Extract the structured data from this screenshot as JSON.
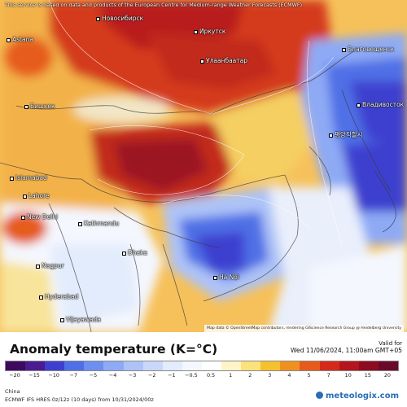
{
  "banner": "This service is based on data and products of the European Centre for Medium-range Weather Forecasts (ECMWF)",
  "attribution": "Map data © OpenStreetMap contributors, rendering GIScience Research Group @ Heidelberg University",
  "valid": {
    "label": "Valid for",
    "time": "Wed 11/06/2024, 11:00am GMT+05"
  },
  "legend": {
    "title": "Anomaly temperature (K=°C)",
    "ticks": [
      "−20",
      "−15",
      "−10",
      "−7",
      "−5",
      "−4",
      "−3",
      "−2",
      "−1",
      "−0.5",
      "0.5",
      "1",
      "2",
      "3",
      "4",
      "5",
      "7",
      "10",
      "15",
      "20"
    ],
    "colors": [
      "#3d0a5e",
      "#4b1b8f",
      "#3d3fcf",
      "#4f6fe6",
      "#6e8ff0",
      "#8eaaf5",
      "#adc3f7",
      "#c8d8fa",
      "#e3ecfc",
      "#f4f7fe",
      "#ffffff",
      "#fff4c8",
      "#fce27a",
      "#f6c12f",
      "#ef9121",
      "#e65b1c",
      "#d42a1c",
      "#b5151d",
      "#8c0d22",
      "#6a0a2a"
    ]
  },
  "region": "China",
  "run_info": "ECMWF IFS HRES 0z/12z (10 days) from 10/31/2024/00z",
  "brand": "meteologix.com",
  "cities": [
    {
      "name": "Новосибирск",
      "colour": "#fff"
    },
    {
      "name": "Иркутск"
    },
    {
      "name": "Улаанбаатар"
    },
    {
      "name": "Владивосток"
    },
    {
      "name": "Благовещенск"
    },
    {
      "name": "Бишкек"
    },
    {
      "name": "Islamabad"
    },
    {
      "name": "Lahore"
    },
    {
      "name": "New Delhi"
    },
    {
      "name": "Kathmandu"
    },
    {
      "name": "Dhaka"
    },
    {
      "name": "Nagpur"
    },
    {
      "name": "Hyderabad"
    },
    {
      "name": "Vijayawada"
    },
    {
      "name": "Hà Nội"
    },
    {
      "name": "평양직할시"
    },
    {
      "name": "Astana"
    }
  ]
}
